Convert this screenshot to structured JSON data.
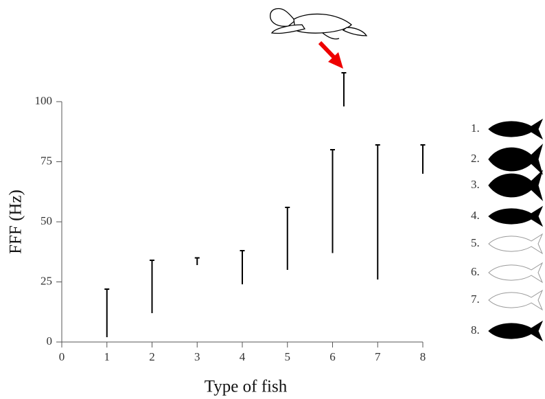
{
  "chart_data": {
    "type": "range_bar",
    "x_label": "Type of fish",
    "y_label": "FFF (Hz)",
    "x": [
      1,
      2,
      3,
      4,
      5,
      6,
      7,
      8,
      6.25
    ],
    "low": [
      2,
      12,
      32,
      24,
      30,
      37,
      26,
      70,
      98
    ],
    "high": [
      22,
      34,
      35,
      38,
      56,
      80,
      82,
      82,
      112
    ],
    "color": "#000000",
    "xlim": [
      0,
      8
    ],
    "xticks": [
      0,
      1,
      2,
      3,
      4,
      5,
      6,
      7,
      8
    ],
    "ylim": [
      0,
      100
    ],
    "yticks": [
      0,
      25,
      50,
      75,
      100
    ],
    "legend_labels": [
      "1.",
      "2.",
      "3.",
      "4.",
      "5.",
      "6.",
      "7.",
      "8."
    ]
  }
}
